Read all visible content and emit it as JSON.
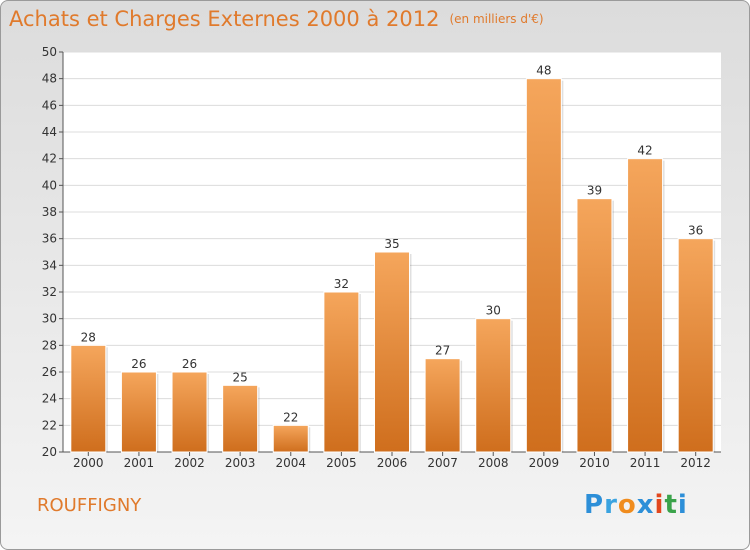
{
  "title": "Achats et Charges Externes 2000 à 2012",
  "unit": "(en milliers d'€)",
  "commune": "ROUFFIGNY",
  "logo": {
    "text": "Proxiti",
    "letters": [
      "P",
      "r",
      "o",
      "x",
      "i",
      "t",
      "i"
    ],
    "colors": [
      "#2d8fd8",
      "#3aa3e0",
      "#f08c1e",
      "#2d8fd8",
      "#e2471e",
      "#3aa34a",
      "#2d8fd8"
    ]
  },
  "colors": {
    "title": "#e07a2c",
    "bar_top": "#f5a65c",
    "bar_bottom": "#cf6e1d"
  },
  "chart_data": {
    "type": "bar",
    "title": "Achats et Charges Externes 2000 à 2012",
    "categories": [
      "2000",
      "2001",
      "2002",
      "2003",
      "2004",
      "2005",
      "2006",
      "2007",
      "2008",
      "2009",
      "2010",
      "2011",
      "2012"
    ],
    "values": [
      28,
      26,
      26,
      25,
      22,
      32,
      35,
      27,
      30,
      48,
      39,
      42,
      36
    ],
    "ylim": [
      20,
      50
    ],
    "yticks": [
      20,
      22,
      24,
      26,
      28,
      30,
      32,
      34,
      36,
      38,
      40,
      42,
      44,
      46,
      48,
      50
    ],
    "grid": true
  }
}
